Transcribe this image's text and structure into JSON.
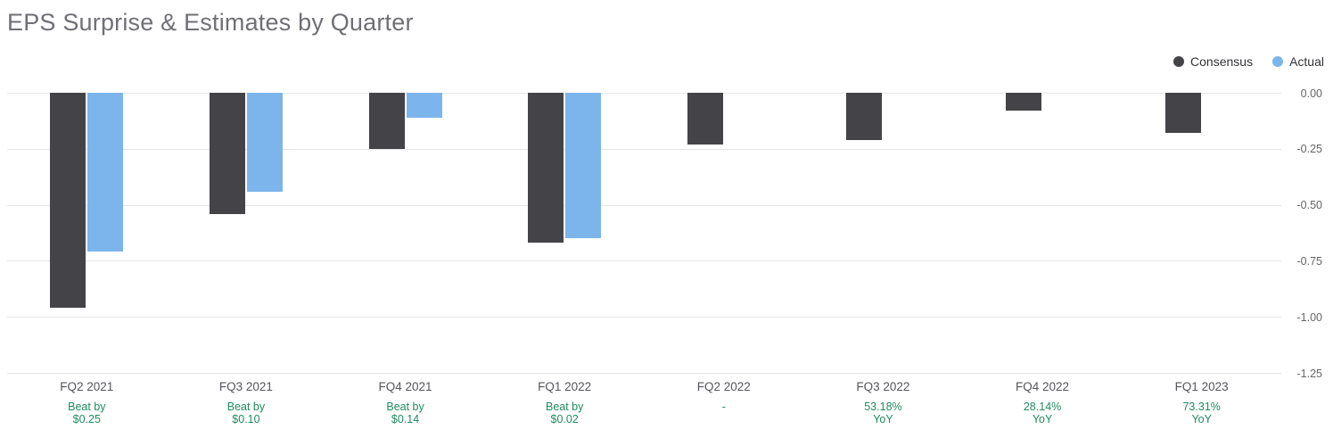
{
  "title": "EPS Surprise & Estimates by Quarter",
  "chart_data": {
    "type": "bar",
    "title": "EPS Surprise & Estimates by Quarter",
    "categories": [
      "FQ2 2021",
      "FQ3 2021",
      "FQ4 2021",
      "FQ1 2022",
      "FQ2 2022",
      "FQ3 2022",
      "FQ4 2022",
      "FQ1 2023"
    ],
    "series": [
      {
        "name": "Consensus",
        "color": "#434348",
        "values": [
          -0.96,
          -0.54,
          -0.25,
          -0.67,
          -0.23,
          -0.21,
          -0.08,
          -0.18
        ]
      },
      {
        "name": "Actual",
        "color": "#7cb5ec",
        "values": [
          -0.71,
          -0.44,
          -0.11,
          -0.65,
          null,
          null,
          null,
          null
        ]
      }
    ],
    "annotations": [
      [
        "Beat by",
        "$0.25"
      ],
      [
        "Beat by",
        "$0.10"
      ],
      [
        "Beat by",
        "$0.14"
      ],
      [
        "Beat by",
        "$0.02"
      ],
      [
        "-"
      ],
      [
        "53.18%",
        "YoY"
      ],
      [
        "28.14%",
        "YoY"
      ],
      [
        "73.31%",
        "YoY"
      ]
    ],
    "annotation_color": "#208b5e",
    "y_ticks": [
      "0.00",
      "-0.25",
      "-0.50",
      "-0.75",
      "-1.00",
      "-1.25"
    ],
    "ylim": [
      -1.25,
      0
    ],
    "xlabel": "",
    "ylabel": "",
    "grid": true,
    "legend_position": "top-right",
    "gridline_color": "#e6e6e6"
  }
}
